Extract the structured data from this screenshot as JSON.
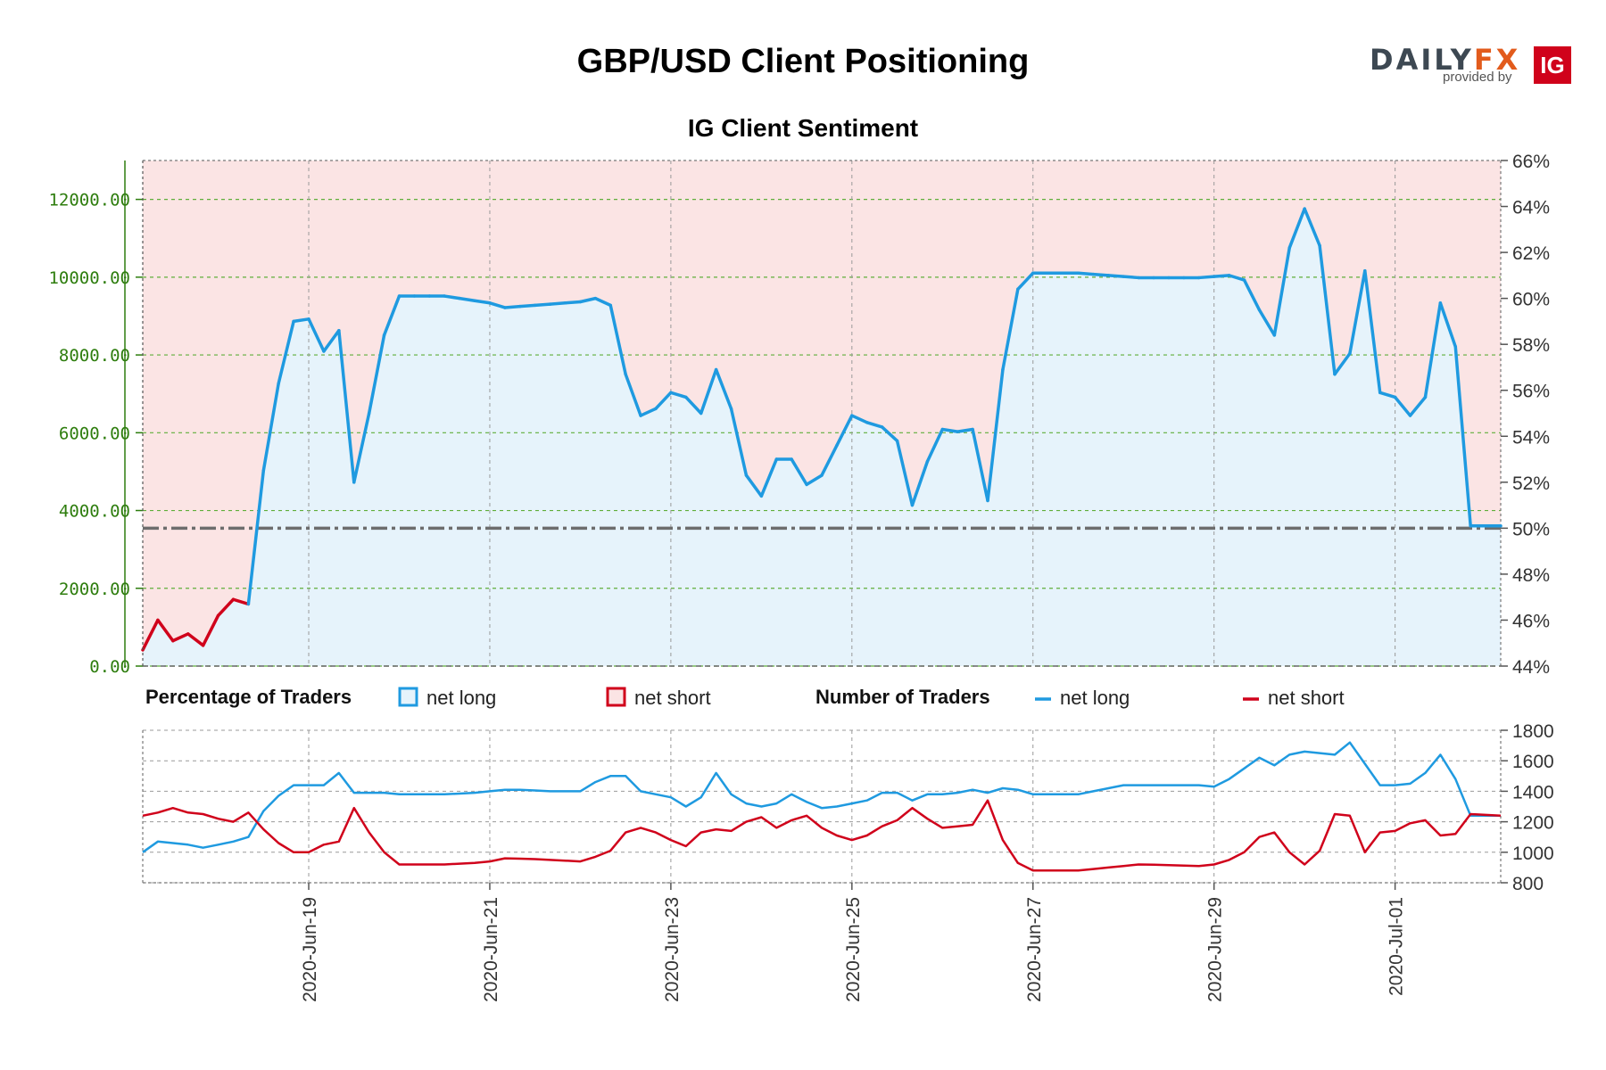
{
  "title": "GBP/USD Client Positioning",
  "subtitle": "IG Client Sentiment",
  "logo": {
    "brand_a": "DAILY",
    "brand_b": "FX",
    "provided_by": "provided by",
    "ig": "IG"
  },
  "colors": {
    "net_long": "#1f9ae0",
    "net_short": "#d0021b",
    "long_fill": "#e6f3fb",
    "short_fill": "#fbe4e4",
    "grid_green": "#5fae3a",
    "grid_gray": "#999999",
    "mid_line": "#6d6d6d"
  },
  "legend": {
    "percentage_title": "Percentage of Traders",
    "number_title": "Number of Traders",
    "pct_long": "net long",
    "pct_short": "net short",
    "num_long": "net long",
    "num_short": "net short"
  },
  "chart_data": {
    "type": "line",
    "x_range": [
      0,
      90
    ],
    "x_ticks": [
      {
        "x": 11,
        "label": "2020-Jun-19"
      },
      {
        "x": 23,
        "label": "2020-Jun-21"
      },
      {
        "x": 35,
        "label": "2020-Jun-23"
      },
      {
        "x": 47,
        "label": "2020-Jun-25"
      },
      {
        "x": 59,
        "label": "2020-Jun-27"
      },
      {
        "x": 71,
        "label": "2020-Jun-29"
      },
      {
        "x": 83,
        "label": "2020-Jul-01"
      }
    ],
    "left_axis": {
      "ylim": [
        0,
        13000
      ],
      "ticks": [
        "0.00",
        "2000.00",
        "4000.00",
        "6000.00",
        "8000.00",
        "10000.00",
        "12000.00"
      ],
      "tick_values": [
        0,
        2000,
        4000,
        6000,
        8000,
        10000,
        12000
      ]
    },
    "right_axis": {
      "ylim": [
        44,
        66
      ],
      "ticks": [
        "44%",
        "46%",
        "48%",
        "50%",
        "52%",
        "54%",
        "56%",
        "58%",
        "60%",
        "62%",
        "64%",
        "66%"
      ],
      "tick_values": [
        44,
        46,
        48,
        50,
        52,
        54,
        56,
        58,
        60,
        62,
        64,
        66
      ]
    },
    "bottom_axis": {
      "ylim": [
        800,
        1800
      ],
      "ticks": [
        "800",
        "1000",
        "1200",
        "1400",
        "1600",
        "1800"
      ],
      "tick_values": [
        800,
        1000,
        1200,
        1400,
        1600,
        1800
      ]
    },
    "reference_line_pct": 50,
    "net_long_pct": {
      "x": [
        0,
        1,
        2,
        3,
        4,
        5,
        6,
        7,
        8,
        9,
        10,
        11,
        12,
        13,
        14,
        15,
        16,
        17,
        18,
        19,
        20,
        21,
        22,
        23,
        24,
        25,
        26,
        27,
        28,
        29,
        30,
        31,
        32,
        33,
        34,
        35,
        36,
        37,
        38,
        39,
        40,
        41,
        42,
        43,
        44,
        45,
        46,
        47,
        48,
        49,
        50,
        51,
        52,
        53,
        54,
        55,
        56,
        57,
        58,
        59,
        60,
        61,
        62,
        63,
        64,
        65,
        66,
        67,
        68,
        69,
        70,
        71,
        72,
        73,
        74,
        75,
        76,
        77,
        78,
        79,
        80,
        81,
        82,
        83,
        84,
        85,
        86,
        87,
        88,
        89,
        90
      ],
      "y": [
        44.7,
        46.0,
        45.1,
        45.4,
        44.9,
        46.2,
        46.9,
        46.7,
        52.5,
        56.3,
        59.0,
        59.1,
        57.7,
        58.6,
        52.0,
        55.0,
        58.4,
        60.1,
        60.1,
        60.1,
        60.1,
        60.0,
        59.9,
        59.8,
        59.6,
        59.65,
        59.7,
        59.75,
        59.8,
        59.85,
        60.0,
        59.7,
        56.7,
        54.9,
        55.2,
        55.9,
        55.7,
        55.0,
        56.9,
        55.2,
        52.3,
        51.4,
        53.0,
        53.0,
        51.9,
        52.3,
        53.6,
        54.9,
        54.6,
        54.4,
        53.8,
        51.0,
        52.9,
        54.3,
        54.2,
        54.3,
        51.2,
        56.9,
        60.4,
        61.1,
        61.1,
        61.1,
        61.1,
        61.05,
        61.0,
        60.95,
        60.9,
        60.9,
        60.9,
        60.9,
        60.9,
        60.95,
        61.0,
        60.8,
        59.5,
        58.4,
        62.2,
        63.9,
        62.3,
        56.7,
        57.6,
        61.2,
        55.9,
        55.7,
        54.9,
        55.7,
        59.8,
        57.9,
        50.1,
        50.1,
        50.1
      ]
    },
    "net_long_count": {
      "x": [
        0,
        1,
        2,
        3,
        4,
        5,
        6,
        7,
        8,
        9,
        10,
        11,
        12,
        13,
        14,
        15,
        16,
        17,
        18,
        19,
        20,
        21,
        22,
        23,
        24,
        25,
        26,
        27,
        28,
        29,
        30,
        31,
        32,
        33,
        34,
        35,
        36,
        37,
        38,
        39,
        40,
        41,
        42,
        43,
        44,
        45,
        46,
        47,
        48,
        49,
        50,
        51,
        52,
        53,
        54,
        55,
        56,
        57,
        58,
        59,
        60,
        61,
        62,
        63,
        64,
        65,
        66,
        67,
        68,
        69,
        70,
        71,
        72,
        73,
        74,
        75,
        76,
        77,
        78,
        79,
        80,
        81,
        82,
        83,
        84,
        85,
        86,
        87,
        88,
        89,
        90
      ],
      "y": [
        1000,
        1070,
        1060,
        1050,
        1030,
        1050,
        1070,
        1100,
        1270,
        1370,
        1440,
        1440,
        1440,
        1520,
        1390,
        1390,
        1390,
        1380,
        1380,
        1380,
        1380,
        1385,
        1390,
        1400,
        1410,
        1410,
        1405,
        1400,
        1400,
        1400,
        1460,
        1500,
        1500,
        1400,
        1380,
        1360,
        1300,
        1360,
        1520,
        1380,
        1320,
        1300,
        1320,
        1380,
        1330,
        1290,
        1300,
        1320,
        1340,
        1390,
        1390,
        1340,
        1380,
        1380,
        1390,
        1410,
        1390,
        1420,
        1410,
        1380,
        1380,
        1380,
        1380,
        1400,
        1420,
        1440,
        1440,
        1440,
        1440,
        1440,
        1440,
        1430,
        1480,
        1550,
        1620,
        1570,
        1640,
        1660,
        1650,
        1640,
        1720,
        1580,
        1440,
        1440,
        1450,
        1520,
        1640,
        1480,
        1240,
        1240,
        1240
      ]
    },
    "net_short_count": {
      "x": [
        0,
        1,
        2,
        3,
        4,
        5,
        6,
        7,
        8,
        9,
        10,
        11,
        12,
        13,
        14,
        15,
        16,
        17,
        18,
        19,
        20,
        21,
        22,
        23,
        24,
        25,
        26,
        27,
        28,
        29,
        30,
        31,
        32,
        33,
        34,
        35,
        36,
        37,
        38,
        39,
        40,
        41,
        42,
        43,
        44,
        45,
        46,
        47,
        48,
        49,
        50,
        51,
        52,
        53,
        54,
        55,
        56,
        57,
        58,
        59,
        60,
        61,
        62,
        63,
        64,
        65,
        66,
        67,
        68,
        69,
        70,
        71,
        72,
        73,
        74,
        75,
        76,
        77,
        78,
        79,
        80,
        81,
        82,
        83,
        84,
        85,
        86,
        87,
        88,
        89,
        90
      ],
      "y": [
        1240,
        1260,
        1290,
        1260,
        1250,
        1220,
        1200,
        1260,
        1150,
        1060,
        1000,
        1000,
        1050,
        1070,
        1290,
        1130,
        1000,
        920,
        920,
        920,
        920,
        925,
        930,
        940,
        960,
        958,
        955,
        950,
        945,
        940,
        970,
        1010,
        1130,
        1160,
        1130,
        1080,
        1040,
        1130,
        1150,
        1140,
        1200,
        1230,
        1160,
        1210,
        1240,
        1160,
        1110,
        1080,
        1110,
        1170,
        1210,
        1290,
        1220,
        1160,
        1170,
        1180,
        1340,
        1080,
        930,
        880,
        880,
        880,
        880,
        890,
        900,
        910,
        920,
        918,
        915,
        912,
        910,
        920,
        950,
        1000,
        1100,
        1130,
        1000,
        920,
        1010,
        1250,
        1240,
        1000,
        1130,
        1140,
        1190,
        1210,
        1110,
        1120,
        1250,
        1245,
        1240
      ]
    }
  }
}
